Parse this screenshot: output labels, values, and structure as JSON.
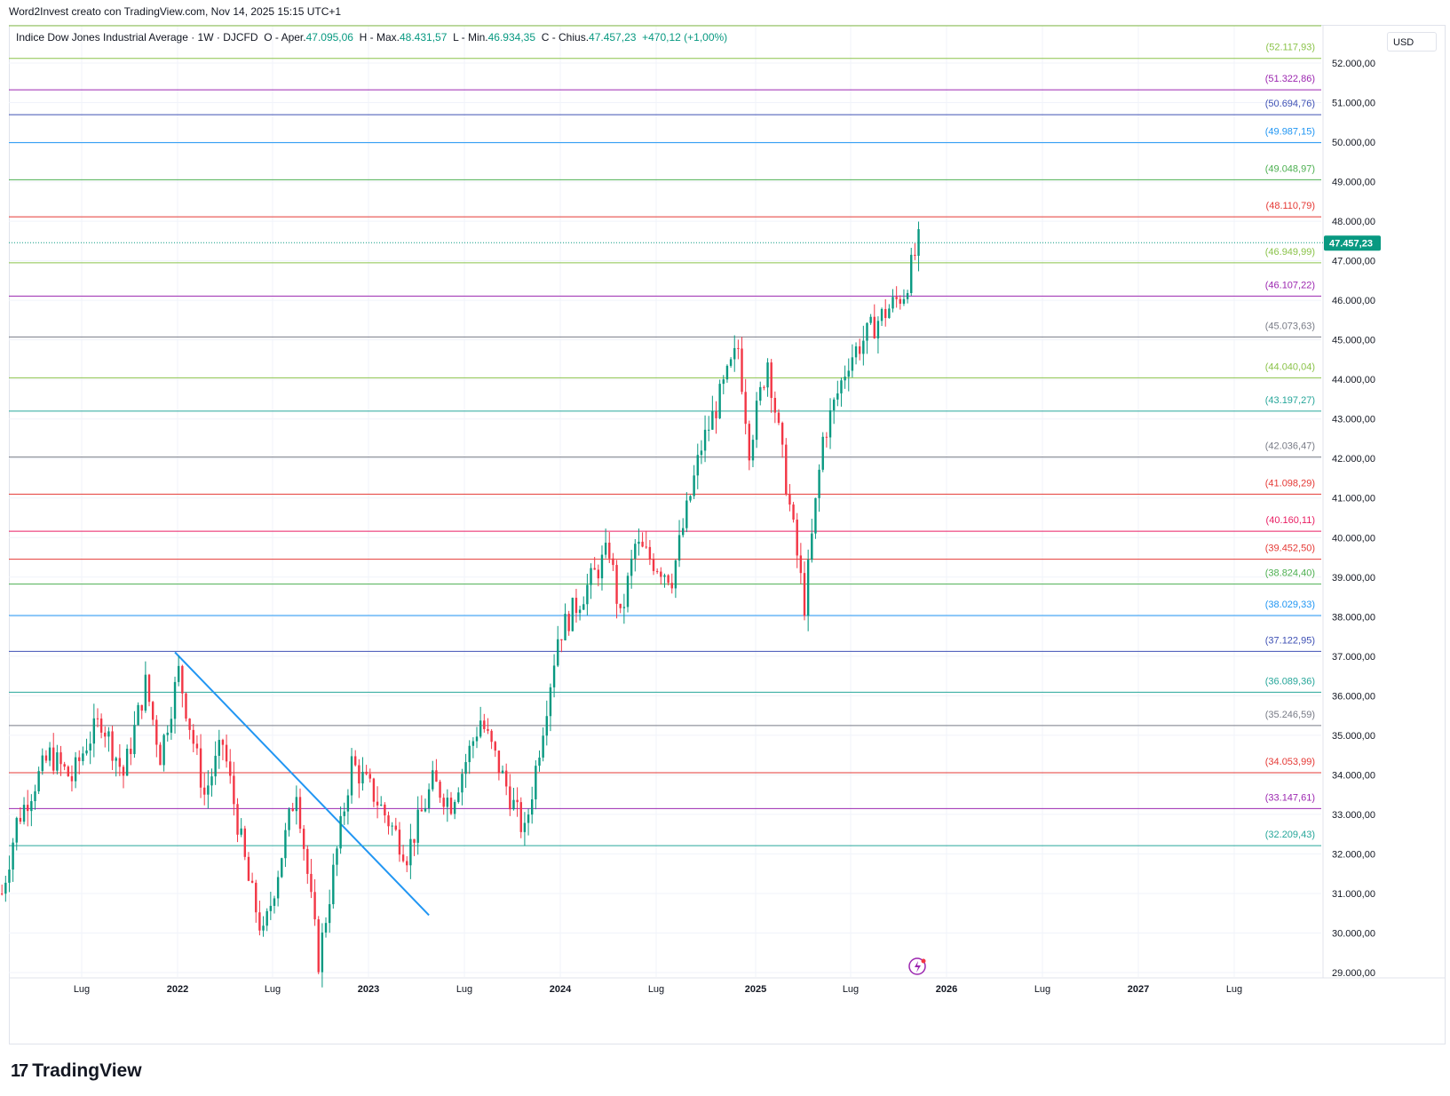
{
  "header": {
    "watermark_text": "Word2Invest creato con TradingView.com, Nov 14, 2025 15:15 UTC+1"
  },
  "legend": {
    "symbol": "Indice Dow Jones Industrial Average · 1W · DJCFD",
    "o_label": "O - Aper.",
    "o_value": "47.095,06",
    "h_label": "H - Max.",
    "h_value": "48.431,57",
    "l_label": "L - Min.",
    "l_value": "46.934,35",
    "c_label": "C - Chius.",
    "c_value": "47.457,23",
    "change": "+470,12 (+1,00%)"
  },
  "currency_button": "USD",
  "brand": {
    "name": "TradingView"
  },
  "colors": {
    "up": "#089981",
    "down": "#f23645",
    "trendline": "#2196f3",
    "grid": "#f0f3fa"
  },
  "chart_data": {
    "type": "candlestick",
    "title": "",
    "y_axis_ticks": [
      "52.000,00",
      "51.000,00",
      "50.000,00",
      "49.000,00",
      "48.000,00",
      "47.000,00",
      "46.000,00",
      "45.000,00",
      "44.000,00",
      "43.000,00",
      "42.000,00",
      "41.000,00",
      "40.000,00",
      "39.000,00",
      "38.000,00",
      "37.000,00",
      "36.000,00",
      "35.000,00",
      "34.000,00",
      "33.000,00",
      "32.000,00",
      "31.000,00",
      "30.000,00",
      "29.000,00"
    ],
    "x_axis_ticks": [
      "Lug",
      "2022",
      "Lug",
      "2023",
      "Lug",
      "2024",
      "Lug",
      "2025",
      "Lug",
      "2026",
      "Lug",
      "2027",
      "Lug"
    ],
    "ylim": [
      28800,
      52500
    ],
    "last_price": {
      "value": 47457.23,
      "label": "47.457,23"
    },
    "levels": [
      {
        "value": 52117.93,
        "label": "(52.117,93)",
        "color": "#8bc34a"
      },
      {
        "value": 51322.86,
        "label": "(51.322,86)",
        "color": "#9c27b0"
      },
      {
        "value": 50694.76,
        "label": "(50.694,76)",
        "color": "#3f51b5"
      },
      {
        "value": 49987.15,
        "label": "(49.987,15)",
        "color": "#2196f3"
      },
      {
        "value": 49048.97,
        "label": "(49.048,97)",
        "color": "#4caf50"
      },
      {
        "value": 48110.79,
        "label": "(48.110,79)",
        "color": "#e53935"
      },
      {
        "value": 46949.99,
        "label": "(46.949,99)",
        "color": "#8bc34a"
      },
      {
        "value": 46107.22,
        "label": "(46.107,22)",
        "color": "#9c27b0"
      },
      {
        "value": 45073.63,
        "label": "(45.073,63)",
        "color": "#787b86"
      },
      {
        "value": 44040.04,
        "label": "(44.040,04)",
        "color": "#8bc34a"
      },
      {
        "value": 43197.27,
        "label": "(43.197,27)",
        "color": "#26a69a"
      },
      {
        "value": 42036.47,
        "label": "(42.036,47)",
        "color": "#787b86"
      },
      {
        "value": 41098.29,
        "label": "(41.098,29)",
        "color": "#e53935"
      },
      {
        "value": 40160.11,
        "label": "(40.160,11)",
        "color": "#e91e63"
      },
      {
        "value": 39452.5,
        "label": "(39.452,50)",
        "color": "#e53935"
      },
      {
        "value": 38824.4,
        "label": "(38.824,40)",
        "color": "#4caf50"
      },
      {
        "value": 38029.33,
        "label": "(38.029,33)",
        "color": "#2196f3"
      },
      {
        "value": 37122.95,
        "label": "(37.122,95)",
        "color": "#3f51b5"
      },
      {
        "value": 36089.36,
        "label": "(36.089,36)",
        "color": "#26a69a"
      },
      {
        "value": 35246.59,
        "label": "(35.246,59)",
        "color": "#787b86"
      },
      {
        "value": 34053.99,
        "label": "(34.053,99)",
        "color": "#e53935"
      },
      {
        "value": 33147.61,
        "label": "(33.147,61)",
        "color": "#9c27b0"
      },
      {
        "value": 32209.43,
        "label": "(32.209,43)",
        "color": "#26a69a"
      }
    ],
    "trendline": {
      "start": {
        "date": "2021-12-27",
        "value": 37100
      },
      "end": {
        "date": "2023-04-24",
        "value": 30450
      }
    },
    "series": [
      {
        "name": "",
        "anchors": [
          {
            "date": "2021-02-01",
            "value": 31000
          },
          {
            "date": "2021-03-01",
            "value": 32800
          },
          {
            "date": "2021-04-05",
            "value": 33800
          },
          {
            "date": "2021-05-03",
            "value": 34500
          },
          {
            "date": "2021-06-14",
            "value": 33900
          },
          {
            "date": "2021-07-12",
            "value": 34800
          },
          {
            "date": "2021-08-09",
            "value": 35400
          },
          {
            "date": "2021-09-20",
            "value": 34000
          },
          {
            "date": "2021-11-01",
            "value": 36300
          },
          {
            "date": "2021-11-29",
            "value": 34500
          },
          {
            "date": "2022-01-03",
            "value": 36600
          },
          {
            "date": "2022-02-21",
            "value": 33500
          },
          {
            "date": "2022-03-28",
            "value": 34800
          },
          {
            "date": "2022-05-16",
            "value": 31300
          },
          {
            "date": "2022-06-13",
            "value": 29900
          },
          {
            "date": "2022-08-15",
            "value": 33700
          },
          {
            "date": "2022-09-26",
            "value": 29300
          },
          {
            "date": "2022-11-28",
            "value": 34300
          },
          {
            "date": "2023-01-09",
            "value": 33500
          },
          {
            "date": "2023-03-13",
            "value": 32000
          },
          {
            "date": "2023-05-01",
            "value": 33800
          },
          {
            "date": "2023-06-05",
            "value": 33300
          },
          {
            "date": "2023-07-31",
            "value": 35400
          },
          {
            "date": "2023-10-23",
            "value": 32500
          },
          {
            "date": "2023-12-25",
            "value": 37500
          },
          {
            "date": "2024-04-01",
            "value": 39700
          },
          {
            "date": "2024-04-22",
            "value": 37900
          },
          {
            "date": "2024-05-20",
            "value": 39800
          },
          {
            "date": "2024-07-29",
            "value": 39000
          },
          {
            "date": "2024-09-23",
            "value": 42300
          },
          {
            "date": "2024-12-02",
            "value": 44800
          },
          {
            "date": "2024-12-23",
            "value": 42300
          },
          {
            "date": "2025-01-27",
            "value": 44500
          },
          {
            "date": "2025-04-07",
            "value": 38300
          },
          {
            "date": "2025-05-12",
            "value": 42500
          },
          {
            "date": "2025-06-30",
            "value": 44500
          },
          {
            "date": "2025-08-25",
            "value": 45500
          },
          {
            "date": "2025-10-13",
            "value": 46200
          },
          {
            "date": "2025-11-10",
            "value": 47457
          }
        ]
      }
    ]
  }
}
